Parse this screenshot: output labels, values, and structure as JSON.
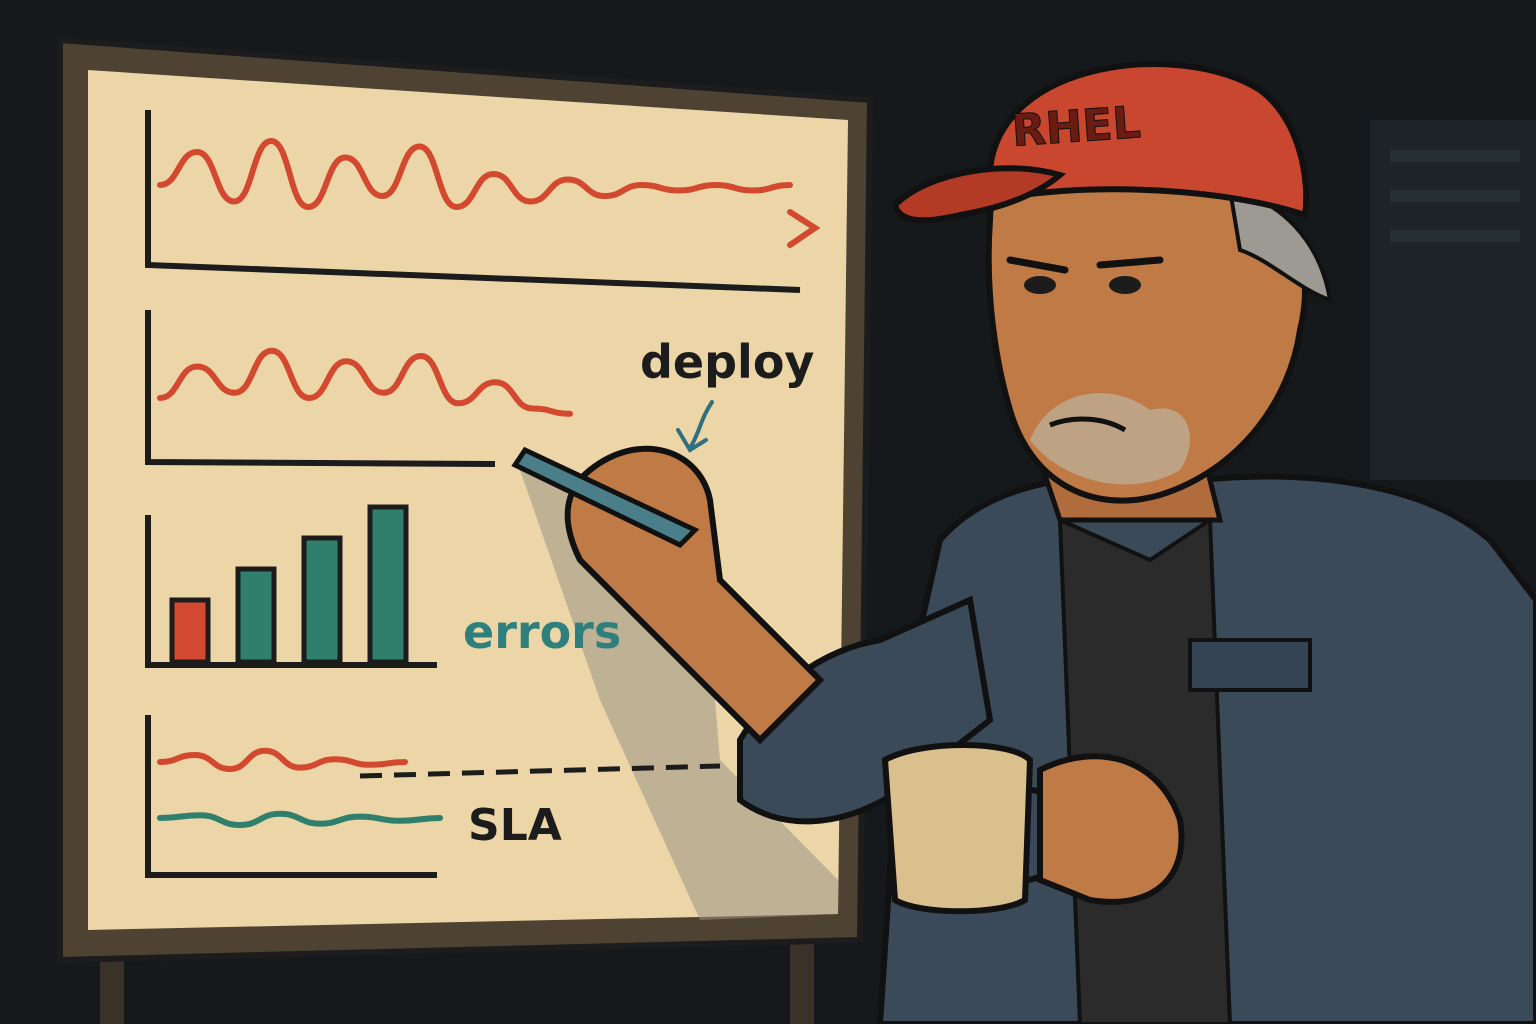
{
  "scene": {
    "description_colors": {
      "background": "#15191b",
      "board_surface": "#ecd6a8",
      "board_frame": "#6b5a45",
      "marker_red": "#d2492f",
      "marker_teal": "#2f7f6c",
      "marker_dark": "#1c1c1c",
      "cap": "#c9472e",
      "jacket": "#3b4a58",
      "skin": "#c07a45",
      "mug": "#d9c08c"
    }
  },
  "whiteboard": {
    "annotations": {
      "deploy": "deploy",
      "errors": "errors",
      "sla": "SLA"
    }
  },
  "person": {
    "cap_text": "RHEL"
  },
  "chart_data": [
    {
      "type": "line",
      "series": [
        {
          "values": [
            0.5,
            0.8,
            0.35,
            0.9,
            0.3,
            0.75,
            0.4,
            0.85,
            0.3,
            0.6,
            0.35,
            0.55,
            0.4,
            0.5,
            0.45,
            0.5,
            0.45,
            0.5
          ]
        }
      ]
    },
    {
      "type": "line",
      "series": [
        {
          "values": [
            0.4,
            0.7,
            0.45,
            0.85,
            0.4,
            0.75,
            0.45,
            0.8,
            0.35,
            0.55,
            0.3,
            0.25
          ]
        }
      ]
    },
    {
      "type": "bar",
      "categories": [
        "",
        "",
        "",
        ""
      ],
      "values": [
        4,
        6,
        8,
        10
      ]
    },
    {
      "type": "line",
      "series": [
        {
          "values": [
            0.7,
            0.75,
            0.65,
            0.78,
            0.66,
            0.72,
            0.68,
            0.7
          ]
        },
        {
          "values": [
            0.3,
            0.32,
            0.25,
            0.33,
            0.26,
            0.31,
            0.28,
            0.3
          ]
        }
      ]
    }
  ]
}
